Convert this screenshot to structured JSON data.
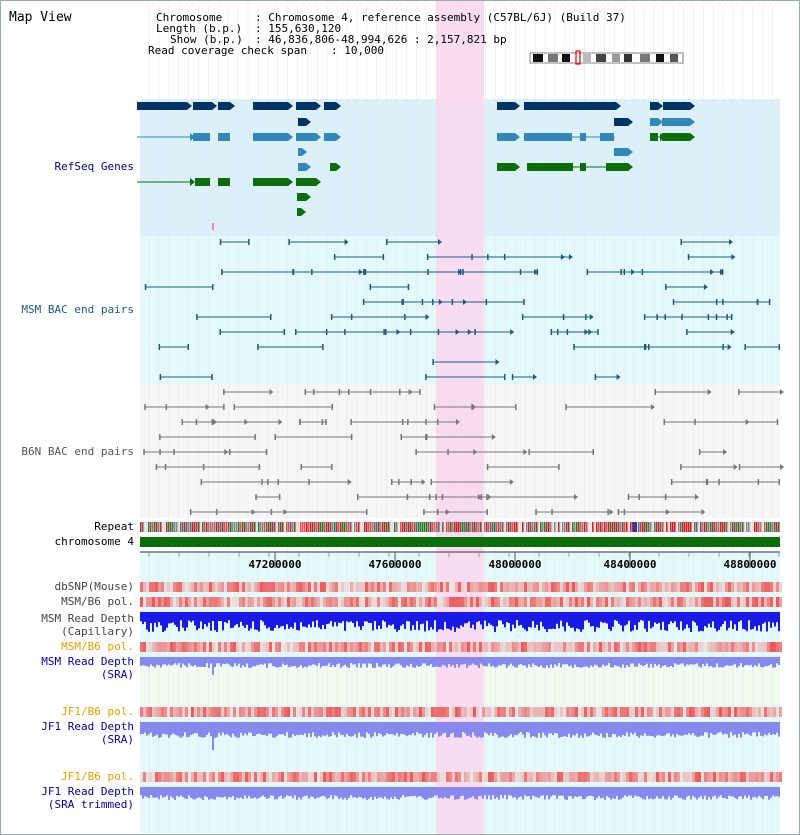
{
  "app": {
    "title": "Map View"
  },
  "info": {
    "chromosome_label": "Chromosome",
    "chromosome_value": ": Chromosome 4, reference assembly (C57BL/6J) (Build 37)",
    "length_label": "Length (b.p.)",
    "length_value": ": 155,630,120",
    "show_label": "Show (b.p.)",
    "show_value": ": 46,836,806-48,994,626 : 2,157,821 bp",
    "coverage_label": "Read coverage check span",
    "coverage_value": ": 10,000"
  },
  "tracks": {
    "refseq": {
      "label": "RefSeq Genes",
      "color": "#00008b"
    },
    "msm_bac": {
      "label": "MSM BAC end pairs",
      "color": "#1d5a8a"
    },
    "b6n_bac": {
      "label": "B6N BAC end pairs",
      "color": "#666666"
    },
    "repeat": {
      "label": "Repeat"
    },
    "chromosome": {
      "label": "chromosome 4"
    },
    "dbsnp": {
      "label": "dbSNP(Mouse)"
    },
    "msm_b6_pol_1": {
      "label": "MSM/B6 pol."
    },
    "msm_depth_cap": {
      "label": "MSM Read Depth",
      "sub": "(Capillary)"
    },
    "msm_b6_pol_2": {
      "label": "MSM/B6 pol."
    },
    "msm_depth_sra": {
      "label": "MSM Read Depth",
      "sub": "(SRA)"
    },
    "jf1_b6_pol_1": {
      "label": "JF1/B6 pol."
    },
    "jf1_depth_sra": {
      "label": "JF1 Read Depth",
      "sub": "(SRA)"
    },
    "jf1_b6_pol_2": {
      "label": "JF1/B6 pol."
    },
    "jf1_depth_trim": {
      "label": "JF1 Read Depth",
      "sub": "(SRA trimmed)"
    }
  },
  "axis": {
    "ticks": [
      "47200000",
      "47600000",
      "48000000",
      "48400000",
      "48800000"
    ]
  },
  "colors": {
    "refseq_bg": "#dcf0fa",
    "msm_bg": "#e4fafa",
    "b6n_bg": "#f6f6f6",
    "lower_bg": "#e4fafa",
    "jf1_bg": "#f0fcf0",
    "highlight": "#f9d8ef",
    "chromosome_bar": "#0a6e0a",
    "gene_dark": "#003366",
    "gene_mid": "#3388bb",
    "gene_green": "#0b6e0b",
    "depth_blue": "#1a1ae6",
    "depth_light": "#8888ee",
    "label_orange": "#e8a000"
  }
}
